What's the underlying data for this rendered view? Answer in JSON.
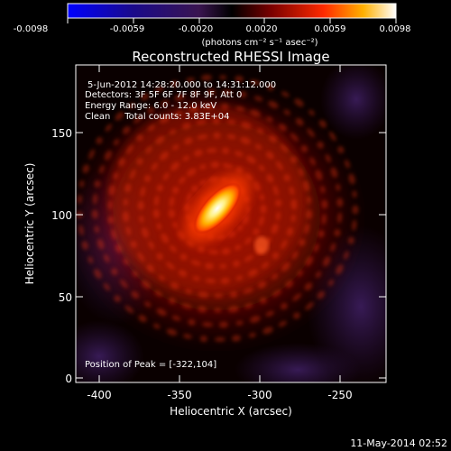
{
  "colorbar": {
    "ticks": [
      "-0.0098",
      "-0.0059",
      "-0.0020",
      "0.0020",
      "0.0059",
      "0.0098"
    ],
    "unit_label": "(photons cm⁻² s⁻¹ asec⁻²)",
    "colors": [
      "#0000ff",
      "#1a0a8a",
      "#3a1550",
      "#000000",
      "#7a0000",
      "#ff2a00",
      "#ffb000",
      "#ffffff"
    ]
  },
  "title": "Reconstructed RHESSI Image",
  "info": {
    "line1": "5-Jun-2012 14:28:20.000 to 14:31:12.000",
    "line2": "Detectors: 3F 5F 6F 7F 8F 9F, Att 0",
    "line3": "Energy Range: 6.0 - 12.0 keV",
    "line4": "Clean     Total counts: 3.83E+04"
  },
  "peak_text": "Position of Peak = [-322,104]",
  "axes": {
    "xlabel": "Heliocentric X (arcsec)",
    "ylabel": "Heliocentric Y (arcsec)",
    "xticks": [
      "-400",
      "-350",
      "-300",
      "-250"
    ],
    "yticks": [
      "0",
      "50",
      "100",
      "150"
    ]
  },
  "footer_date": "11-May-2014 02:52"
}
